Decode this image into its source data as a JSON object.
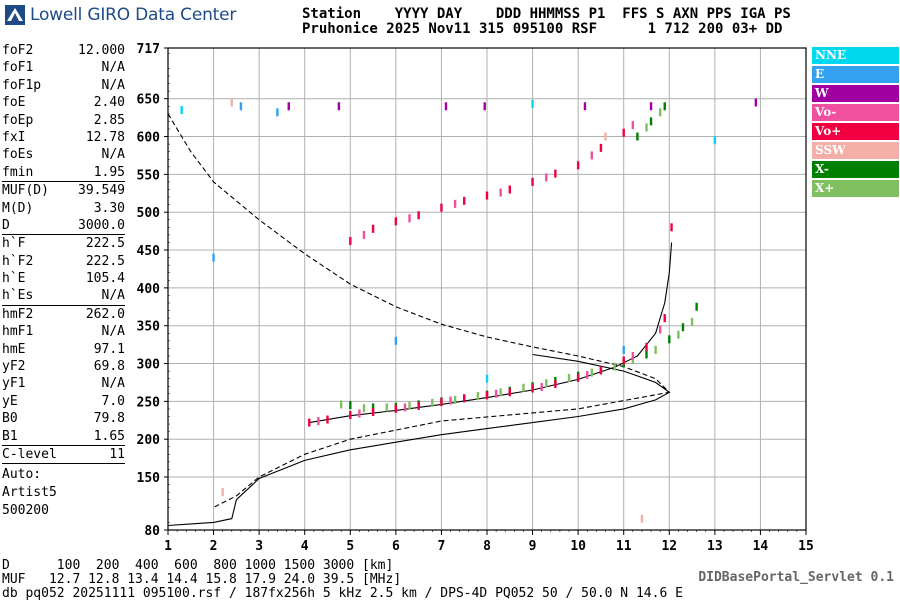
{
  "header": {
    "logo_text": "Lowell GIRO Data Center",
    "row1": "Station    YYYY DAY    DDD HHMMSS P1  FFS S AXN PPS IGA PS",
    "row2": "Pruhonice 2025 Nov11 315 095100 RSF      1 712 200 03+ DD"
  },
  "params": {
    "group1": [
      {
        "name": "foF2",
        "value": "12.000"
      },
      {
        "name": "foF1",
        "value": "N/A"
      },
      {
        "name": "foF1p",
        "value": "N/A"
      },
      {
        "name": "foE",
        "value": "2.40"
      },
      {
        "name": "foEp",
        "value": "2.85"
      },
      {
        "name": "fxI",
        "value": "12.78"
      },
      {
        "name": "foEs",
        "value": "N/A"
      },
      {
        "name": "fmin",
        "value": "1.95"
      }
    ],
    "group2": [
      {
        "name": "MUF(D)",
        "value": "39.549"
      },
      {
        "name": "M(D)",
        "value": "3.30"
      },
      {
        "name": "D",
        "value": "3000.0"
      }
    ],
    "group3": [
      {
        "name": "h`F",
        "value": "222.5"
      },
      {
        "name": "h`F2",
        "value": "222.5"
      },
      {
        "name": "h`E",
        "value": "105.4"
      },
      {
        "name": "h`Es",
        "value": "N/A"
      }
    ],
    "group4": [
      {
        "name": "hmF2",
        "value": "262.0"
      },
      {
        "name": "hmF1",
        "value": "N/A"
      },
      {
        "name": "hmE",
        "value": "97.1"
      },
      {
        "name": "yF2",
        "value": "69.8"
      },
      {
        "name": "yF1",
        "value": "N/A"
      },
      {
        "name": "yE",
        "value": "7.0"
      },
      {
        "name": "B0",
        "value": "79.8"
      },
      {
        "name": "B1",
        "value": "1.65"
      }
    ],
    "group5": [
      {
        "name": "C-level",
        "value": "11"
      }
    ],
    "auto_label": "Auto:",
    "autoscaler": "Artist5",
    "autoscaler_version": "500200"
  },
  "legend": [
    {
      "label": "NNE",
      "color": "#00d8f0"
    },
    {
      "label": "E",
      "color": "#33a0f0"
    },
    {
      "label": "W",
      "color": "#a000a0"
    },
    {
      "label": "Vo-",
      "color": "#f050a0"
    },
    {
      "label": "Vo+",
      "color": "#f00040"
    },
    {
      "label": "SSW",
      "color": "#f4b0a8"
    },
    {
      "label": "X-",
      "color": "#008000"
    },
    {
      "label": "X+",
      "color": "#80c060"
    }
  ],
  "footer": {
    "d_row": "D      100  200  400  600  800 1000 1500 3000 [km]",
    "muf_row": "MUF   12.7 12.8 13.4 14.4 15.8 17.9 24.0 39.5 [MHz]",
    "meta_row": "db pq052 20251111 095100.rsf / 187fx256h 5 kHz 2.5 km / DPS-4D PQ052 50 / 50.0 N 14.6 E",
    "credit": "DIDBasePortal_Servlet 0.1"
  },
  "chart_data": {
    "type": "scatter",
    "title": "",
    "xlabel": "",
    "ylabel": "",
    "xlim": [
      1,
      15
    ],
    "ylim": [
      80,
      717
    ],
    "x_ticks": [
      "1",
      "2",
      "3",
      "4",
      "5",
      "6",
      "7",
      "8",
      "9",
      "10",
      "11",
      "12",
      "13",
      "14",
      "15"
    ],
    "y_ticks": [
      "80",
      "150",
      "200",
      "250",
      "300",
      "350",
      "400",
      "450",
      "500",
      "550",
      "600",
      "650",
      "717"
    ],
    "grid": true,
    "x_scale": "log",
    "series": [
      {
        "name": "X-",
        "color": "#008000",
        "points": [
          [
            5.0,
            245
          ],
          [
            5.5,
            242
          ],
          [
            6.0,
            243
          ],
          [
            6.5,
            246
          ],
          [
            7.0,
            250
          ],
          [
            7.5,
            254
          ],
          [
            8.0,
            259
          ],
          [
            8.5,
            264
          ],
          [
            9.0,
            270
          ],
          [
            9.5,
            277
          ],
          [
            10.0,
            284
          ],
          [
            10.5,
            291
          ],
          [
            11.0,
            300
          ],
          [
            11.5,
            312
          ],
          [
            12.0,
            332
          ],
          [
            12.3,
            348
          ],
          [
            12.6,
            375
          ],
          [
            11.3,
            600
          ],
          [
            11.6,
            620
          ],
          [
            11.9,
            640
          ]
        ]
      },
      {
        "name": "X+",
        "color": "#80c060",
        "points": [
          [
            4.8,
            246
          ],
          [
            5.3,
            241
          ],
          [
            5.8,
            242
          ],
          [
            6.3,
            244
          ],
          [
            6.8,
            248
          ],
          [
            7.3,
            252
          ],
          [
            7.8,
            257
          ],
          [
            8.3,
            262
          ],
          [
            8.8,
            268
          ],
          [
            9.3,
            274
          ],
          [
            9.8,
            281
          ],
          [
            10.3,
            288
          ],
          [
            10.8,
            296
          ],
          [
            11.2,
            305
          ],
          [
            11.7,
            318
          ],
          [
            12.2,
            338
          ],
          [
            12.5,
            355
          ],
          [
            11.5,
            612
          ],
          [
            11.8,
            632
          ]
        ]
      },
      {
        "name": "Vo+",
        "color": "#f00040",
        "points": [
          [
            4.1,
            222
          ],
          [
            4.5,
            226
          ],
          [
            5.0,
            232
          ],
          [
            5.5,
            236
          ],
          [
            6.0,
            240
          ],
          [
            6.5,
            244
          ],
          [
            7.0,
            249
          ],
          [
            7.5,
            254
          ],
          [
            8.0,
            258
          ],
          [
            8.5,
            262
          ],
          [
            9.0,
            267
          ],
          [
            9.5,
            273
          ],
          [
            10.0,
            281
          ],
          [
            10.5,
            291
          ],
          [
            11.0,
            304
          ],
          [
            11.5,
            322
          ],
          [
            11.9,
            360
          ],
          [
            12.05,
            480
          ],
          [
            5.0,
            462
          ],
          [
            5.5,
            478
          ],
          [
            6.0,
            488
          ],
          [
            6.5,
            496
          ],
          [
            7.0,
            506
          ],
          [
            7.5,
            515
          ],
          [
            8.0,
            522
          ],
          [
            8.5,
            530
          ],
          [
            9.0,
            540
          ],
          [
            9.5,
            551
          ],
          [
            10.0,
            562
          ],
          [
            10.5,
            585
          ],
          [
            11.0,
            605
          ]
        ]
      },
      {
        "name": "Vo-",
        "color": "#f050a0",
        "points": [
          [
            4.3,
            224
          ],
          [
            5.2,
            234
          ],
          [
            6.2,
            242
          ],
          [
            7.2,
            251
          ],
          [
            8.2,
            260
          ],
          [
            9.2,
            269
          ],
          [
            10.2,
            285
          ],
          [
            11.2,
            310
          ],
          [
            11.8,
            345
          ],
          [
            5.3,
            470
          ],
          [
            6.3,
            492
          ],
          [
            7.3,
            511
          ],
          [
            8.3,
            526
          ],
          [
            9.3,
            546
          ],
          [
            10.3,
            575
          ],
          [
            11.2,
            615
          ]
        ]
      },
      {
        "name": "W",
        "color": "#a000a0",
        "points": [
          [
            3.65,
            640
          ],
          [
            4.75,
            640
          ],
          [
            7.1,
            640
          ],
          [
            7.95,
            640
          ],
          [
            10.15,
            640
          ],
          [
            11.6,
            640
          ],
          [
            13.9,
            645
          ]
        ]
      },
      {
        "name": "E",
        "color": "#33a0f0",
        "points": [
          [
            3.4,
            632
          ],
          [
            2.6,
            640
          ],
          [
            11.0,
            318
          ],
          [
            6.0,
            330
          ],
          [
            2.0,
            440
          ]
        ]
      },
      {
        "name": "NNE",
        "color": "#00d8f0",
        "points": [
          [
            9.0,
            643
          ],
          [
            8.0,
            280
          ],
          [
            1.3,
            635
          ],
          [
            13.0,
            595
          ]
        ]
      },
      {
        "name": "SSW",
        "color": "#f4b0a8",
        "points": [
          [
            2.4,
            645
          ],
          [
            10.6,
            600
          ],
          [
            2.2,
            130
          ],
          [
            11.4,
            95
          ]
        ]
      }
    ],
    "curves": [
      {
        "style": "solid",
        "points": [
          [
            1.0,
            86
          ],
          [
            1.5,
            88
          ],
          [
            2.0,
            90
          ],
          [
            2.4,
            95
          ],
          [
            2.5,
            120
          ],
          [
            3.0,
            148
          ],
          [
            4.0,
            172
          ],
          [
            5.0,
            186
          ],
          [
            6.0,
            196
          ],
          [
            7.0,
            206
          ],
          [
            8.0,
            214
          ],
          [
            9.0,
            222
          ],
          [
            10.0,
            230
          ],
          [
            11.0,
            240
          ],
          [
            11.7,
            252
          ],
          [
            12.0,
            262
          ],
          [
            12.0,
            262
          ],
          [
            11.7,
            275
          ],
          [
            11.0,
            290
          ],
          [
            10.0,
            303
          ],
          [
            9.0,
            312
          ]
        ]
      },
      {
        "style": "solid",
        "points": [
          [
            4.1,
            222
          ],
          [
            5.0,
            231
          ],
          [
            6.0,
            238
          ],
          [
            7.0,
            246
          ],
          [
            8.0,
            255
          ],
          [
            9.0,
            265
          ],
          [
            10.0,
            279
          ],
          [
            10.8,
            295
          ],
          [
            11.3,
            310
          ],
          [
            11.7,
            340
          ],
          [
            11.9,
            380
          ],
          [
            12.0,
            420
          ],
          [
            12.05,
            460
          ]
        ]
      },
      {
        "style": "dashed",
        "points": [
          [
            1.0,
            630
          ],
          [
            1.5,
            580
          ],
          [
            2.0,
            540
          ],
          [
            3.0,
            490
          ],
          [
            4.0,
            445
          ],
          [
            5.0,
            405
          ],
          [
            6.0,
            375
          ],
          [
            7.0,
            352
          ],
          [
            8.0,
            335
          ],
          [
            9.0,
            322
          ],
          [
            10.0,
            310
          ],
          [
            11.0,
            296
          ],
          [
            11.7,
            280
          ],
          [
            12.0,
            262
          ],
          [
            10.0,
            240
          ],
          [
            7.0,
            224
          ],
          [
            5.0,
            200
          ],
          [
            4.0,
            180
          ],
          [
            3.0,
            150
          ],
          [
            2.5,
            125
          ],
          [
            2.0,
            110
          ]
        ]
      }
    ]
  }
}
